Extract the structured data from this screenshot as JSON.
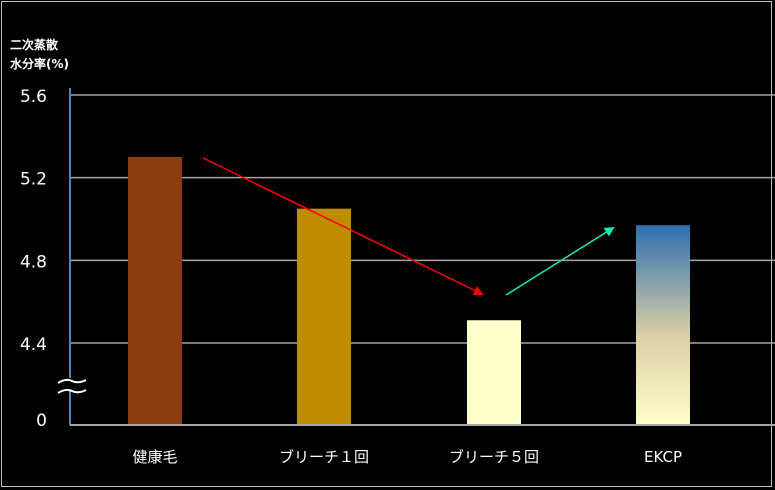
{
  "chart_data": {
    "type": "bar",
    "ylabel_lines": [
      "二次蒸散",
      "水分率(%)"
    ],
    "categories": [
      "健康毛",
      "ブリーチ１回",
      "ブリーチ５回",
      "EKCP"
    ],
    "values": [
      5.3,
      5.05,
      4.51,
      4.97
    ],
    "yticks": [
      "5.6",
      "5.2",
      "4.8",
      "4.4",
      "0"
    ],
    "ylim": [
      4.2,
      5.6
    ],
    "axis_break": true,
    "grid": true,
    "colors": {
      "healthy": "#8b3d0f",
      "bleach1": "#bf8c00",
      "bleach5": "#ffffcc",
      "ekcp_top": "#2e6fb0",
      "ekcp_mid": "#d9cfa6",
      "ekcp_bottom": "#ffffcc",
      "arrow_down": "#ff0000",
      "arrow_up": "#19e8b2",
      "grid": "#a6a6a6",
      "axis": "#5b7fb5"
    }
  }
}
